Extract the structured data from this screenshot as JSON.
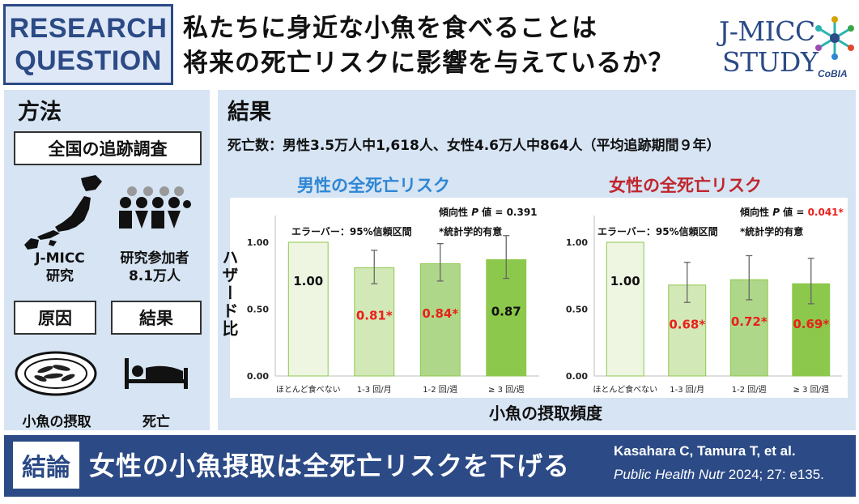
{
  "header": {
    "badge_line1": "RESEARCH",
    "badge_line2": "QUESTION",
    "question_line1": "私たちに身近な小魚を食べることは",
    "question_line2": "将来の死亡リスクに影響を与えているか？",
    "logo_line1": "J-MICC",
    "logo_line2": "STUDY",
    "logo_sub": "CoBIA"
  },
  "method": {
    "title": "方法",
    "survey": "全国の追跡調査",
    "study_line1": "J-MICC",
    "study_line2": "研究",
    "participants_line1": "研究参加者",
    "participants_line2": "8.1万人",
    "cause": "原因",
    "effect": "結果",
    "intake": "小魚の摂取",
    "death": "死亡"
  },
  "results": {
    "title": "結果",
    "deaths": "死亡数：男性3.5万人中1,618人、女性4.6万人中864人（平均追跡期間９年）",
    "x_title": "小魚の摂取頻度",
    "y_title": "ハザード比"
  },
  "chart_data": [
    {
      "type": "bar",
      "title": "男性の全死亡リスク",
      "title_color": "#2e86d4",
      "trend_prefix": "傾向性 ",
      "trend_p": "P",
      "trend_mid": " 値 = ",
      "trend_value": "0.391",
      "trend_value_color": "#111111",
      "errorbar_note": "エラーバー：95%信頼区間",
      "significance_note": "*統計学的有意",
      "categories": [
        "ほとんど食べない",
        "1-3 回/月",
        "1-2 回/週",
        "≥ 3 回/週"
      ],
      "values": [
        1.0,
        0.81,
        0.84,
        0.87
      ],
      "value_labels": [
        "1.00",
        "0.81*",
        "0.84*",
        "0.87"
      ],
      "label_colors": [
        "#111111",
        "#e8211b",
        "#e8211b",
        "#111111"
      ],
      "ci_low": [
        null,
        0.69,
        0.71,
        0.73
      ],
      "ci_high": [
        null,
        0.94,
        0.99,
        1.05
      ],
      "bar_colors": [
        "#eef6e2",
        "#d3e8b7",
        "#afd789",
        "#8cc84b"
      ],
      "ylim": [
        0,
        1.2
      ],
      "yticks": [
        "0.00",
        "0.50",
        "1.00"
      ],
      "ytick_values": [
        0,
        0.5,
        1.0
      ]
    },
    {
      "type": "bar",
      "title": "女性の全死亡リスク",
      "title_color": "#c0262d",
      "trend_prefix": "傾向性 ",
      "trend_p": "P",
      "trend_mid": " 値 = ",
      "trend_value": "0.041*",
      "trend_value_color": "#e8211b",
      "errorbar_note": "エラーバー：95%信頼区間",
      "significance_note": "*統計学的有意",
      "categories": [
        "ほとんど食べない",
        "1-3 回/月",
        "1-2 回/週",
        "≥ 3 回/週"
      ],
      "values": [
        1.0,
        0.68,
        0.72,
        0.69
      ],
      "value_labels": [
        "1.00",
        "0.68*",
        "0.72*",
        "0.69*"
      ],
      "label_colors": [
        "#111111",
        "#e8211b",
        "#e8211b",
        "#e8211b"
      ],
      "ci_low": [
        null,
        0.55,
        0.57,
        0.54
      ],
      "ci_high": [
        null,
        0.85,
        0.9,
        0.88
      ],
      "bar_colors": [
        "#eef6e2",
        "#d3e8b7",
        "#afd789",
        "#8cc84b"
      ],
      "ylim": [
        0,
        1.2
      ],
      "yticks": [
        "0.00",
        "0.50",
        "1.00"
      ],
      "ytick_values": [
        0,
        0.5,
        1.0
      ]
    }
  ],
  "conclusion": {
    "label": "結論",
    "text": "女性の小魚摂取は全死亡リスクを下げる",
    "authors": "Kasahara C, Tamura T, et al.",
    "journal": "Public Health Nutr",
    "ref": " 2024; 27: e135."
  },
  "colors": {
    "navy": "#2b4a86",
    "panel": "#d6e4f3",
    "significant": "#e8211b"
  }
}
